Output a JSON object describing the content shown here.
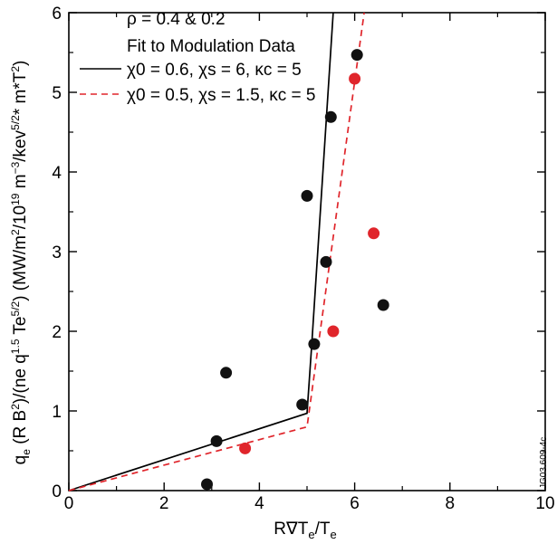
{
  "chart_data": {
    "type": "scatter",
    "xlabel_parts": {
      "main": "R∇T",
      "sub1": "e",
      "mid": "/T",
      "sub2": "e"
    },
    "ylabel_parts": {
      "a": "q",
      "a_sub": "e",
      "b": " (R B",
      "b_sup": "2",
      "c": ")/(ne q",
      "c_sup": "1.5",
      "d": " Te",
      "d_sup": "5/2",
      "e": ") (MW/m",
      "e_sup": "2",
      "f": "/10",
      "f_sup": "19",
      "g": " m",
      "g_sup": "−3",
      "h": "/kev",
      "h_sup": "5/2",
      "i": "* m*T",
      "i_sup": "2",
      "j": ")"
    },
    "xlim": [
      0,
      10
    ],
    "ylim": [
      0,
      6
    ],
    "x_ticks": [
      0,
      2,
      4,
      6,
      8,
      10
    ],
    "y_ticks": [
      0,
      1,
      2,
      3,
      4,
      5,
      6
    ],
    "legend": {
      "title1": "ρ = 0.4 & 0.2",
      "title2": "Fit to Modulation Data",
      "entries": [
        {
          "label": "χ0 = 0.6, χs = 6, κc = 5",
          "style": "solid",
          "color": "#000000"
        },
        {
          "label": "χ0 = 0.5, χs = 1.5, κc = 5",
          "style": "dashed",
          "color": "#e0252b"
        }
      ]
    },
    "series": [
      {
        "color": "#111111",
        "points": [
          [
            2.9,
            0.08
          ],
          [
            3.1,
            0.62
          ],
          [
            3.3,
            1.48
          ],
          [
            4.9,
            1.08
          ],
          [
            5.15,
            1.84
          ],
          [
            5.0,
            3.7
          ],
          [
            5.4,
            2.87
          ],
          [
            5.5,
            4.69
          ],
          [
            6.05,
            5.47
          ],
          [
            6.6,
            2.33
          ]
        ]
      },
      {
        "color": "#e0252b",
        "points": [
          [
            3.7,
            0.53
          ],
          [
            5.55,
            2.0
          ],
          [
            6.0,
            5.17
          ],
          [
            6.4,
            3.23
          ]
        ]
      }
    ],
    "fit_lines": [
      {
        "style": "solid",
        "color": "#000000",
        "points": [
          [
            0,
            0
          ],
          [
            5.0,
            0.97
          ],
          [
            5.1,
            1.85
          ],
          [
            5.55,
            6.0
          ]
        ]
      },
      {
        "style": "dashed",
        "color": "#e0252b",
        "points": [
          [
            0,
            0
          ],
          [
            5.0,
            0.8
          ],
          [
            6.2,
            6.0
          ]
        ]
      }
    ],
    "side_id": "JG03.609-4c"
  }
}
